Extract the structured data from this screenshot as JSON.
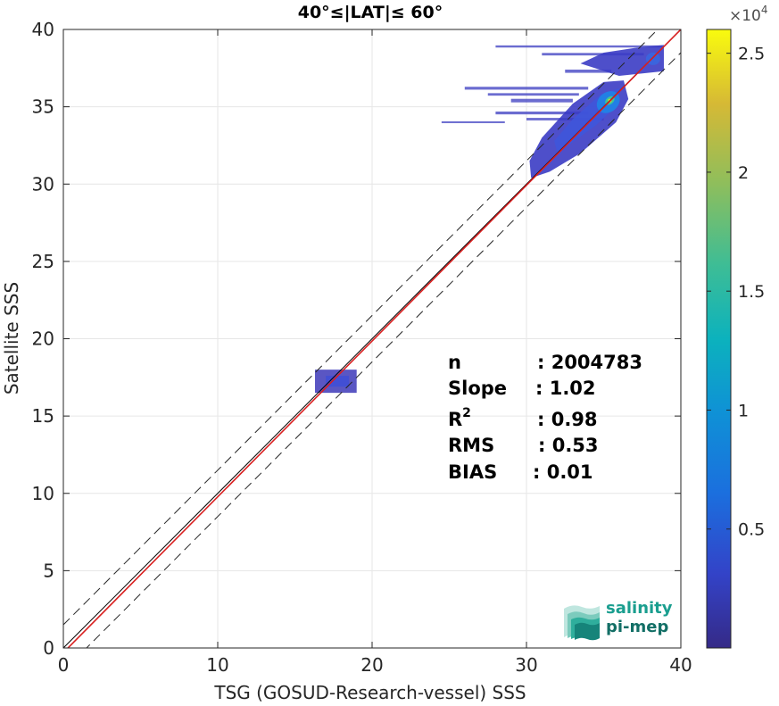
{
  "chart_data": {
    "type": "scatter",
    "title": "40°≤|LAT|≤ 60°",
    "xlabel": "TSG (GOSUD-Research-vessel) SSS",
    "ylabel": "Satellite SSS",
    "xlim": [
      0,
      40
    ],
    "ylim": [
      0,
      40
    ],
    "xticks": [
      0,
      10,
      20,
      30,
      40
    ],
    "yticks": [
      0,
      5,
      10,
      15,
      20,
      25,
      30,
      35,
      40
    ],
    "grid": true,
    "reference_lines": {
      "identity": "y = x",
      "dashed_band_offsets": [
        -1.5,
        1.5
      ],
      "regression_color": "#d92020",
      "identity_color": "#000000"
    },
    "density_clusters": [
      {
        "x_center": 17.5,
        "y_center": 17.2,
        "x_range": [
          16.3,
          19.0
        ],
        "y_range": [
          16.5,
          18.0
        ]
      },
      {
        "x_center": 35.5,
        "y_center": 35.3,
        "x_range": [
          25.0,
          36.5
        ],
        "y_range": [
          33.0,
          36.8
        ]
      },
      {
        "x_center": 33.0,
        "y_center": 32.0,
        "x_range": [
          30.3,
          35.5
        ],
        "y_range": [
          30.3,
          34.0
        ]
      },
      {
        "x_center": 37.5,
        "y_center": 38.0,
        "x_range": [
          28.0,
          39.0
        ],
        "y_range": [
          37.0,
          38.8
        ]
      }
    ],
    "peak_density": {
      "x": 35.4,
      "y": 35.4,
      "count": 26000
    },
    "stats": [
      {
        "label": "n",
        "value": ": 2004783"
      },
      {
        "label": "Slope",
        "value": ": 1.02"
      },
      {
        "label": "R",
        "sup": "2",
        "value": ": 0.98"
      },
      {
        "label": "RMS",
        "value": ": 0.53"
      },
      {
        "label": "BIAS",
        "value": ": 0.01"
      }
    ],
    "colorbar": {
      "colormap": "parula",
      "range": [
        0,
        26000
      ],
      "ticks": [
        5000,
        10000,
        15000,
        20000,
        25000
      ],
      "tick_labels": [
        "0.5",
        "1",
        "1.5",
        "2",
        "2.5"
      ],
      "multiplier_base": "×10",
      "multiplier_exp": "4"
    }
  },
  "logo": {
    "line1": "salinity",
    "line2": "pi-mep",
    "color": "#1a9e8f"
  }
}
